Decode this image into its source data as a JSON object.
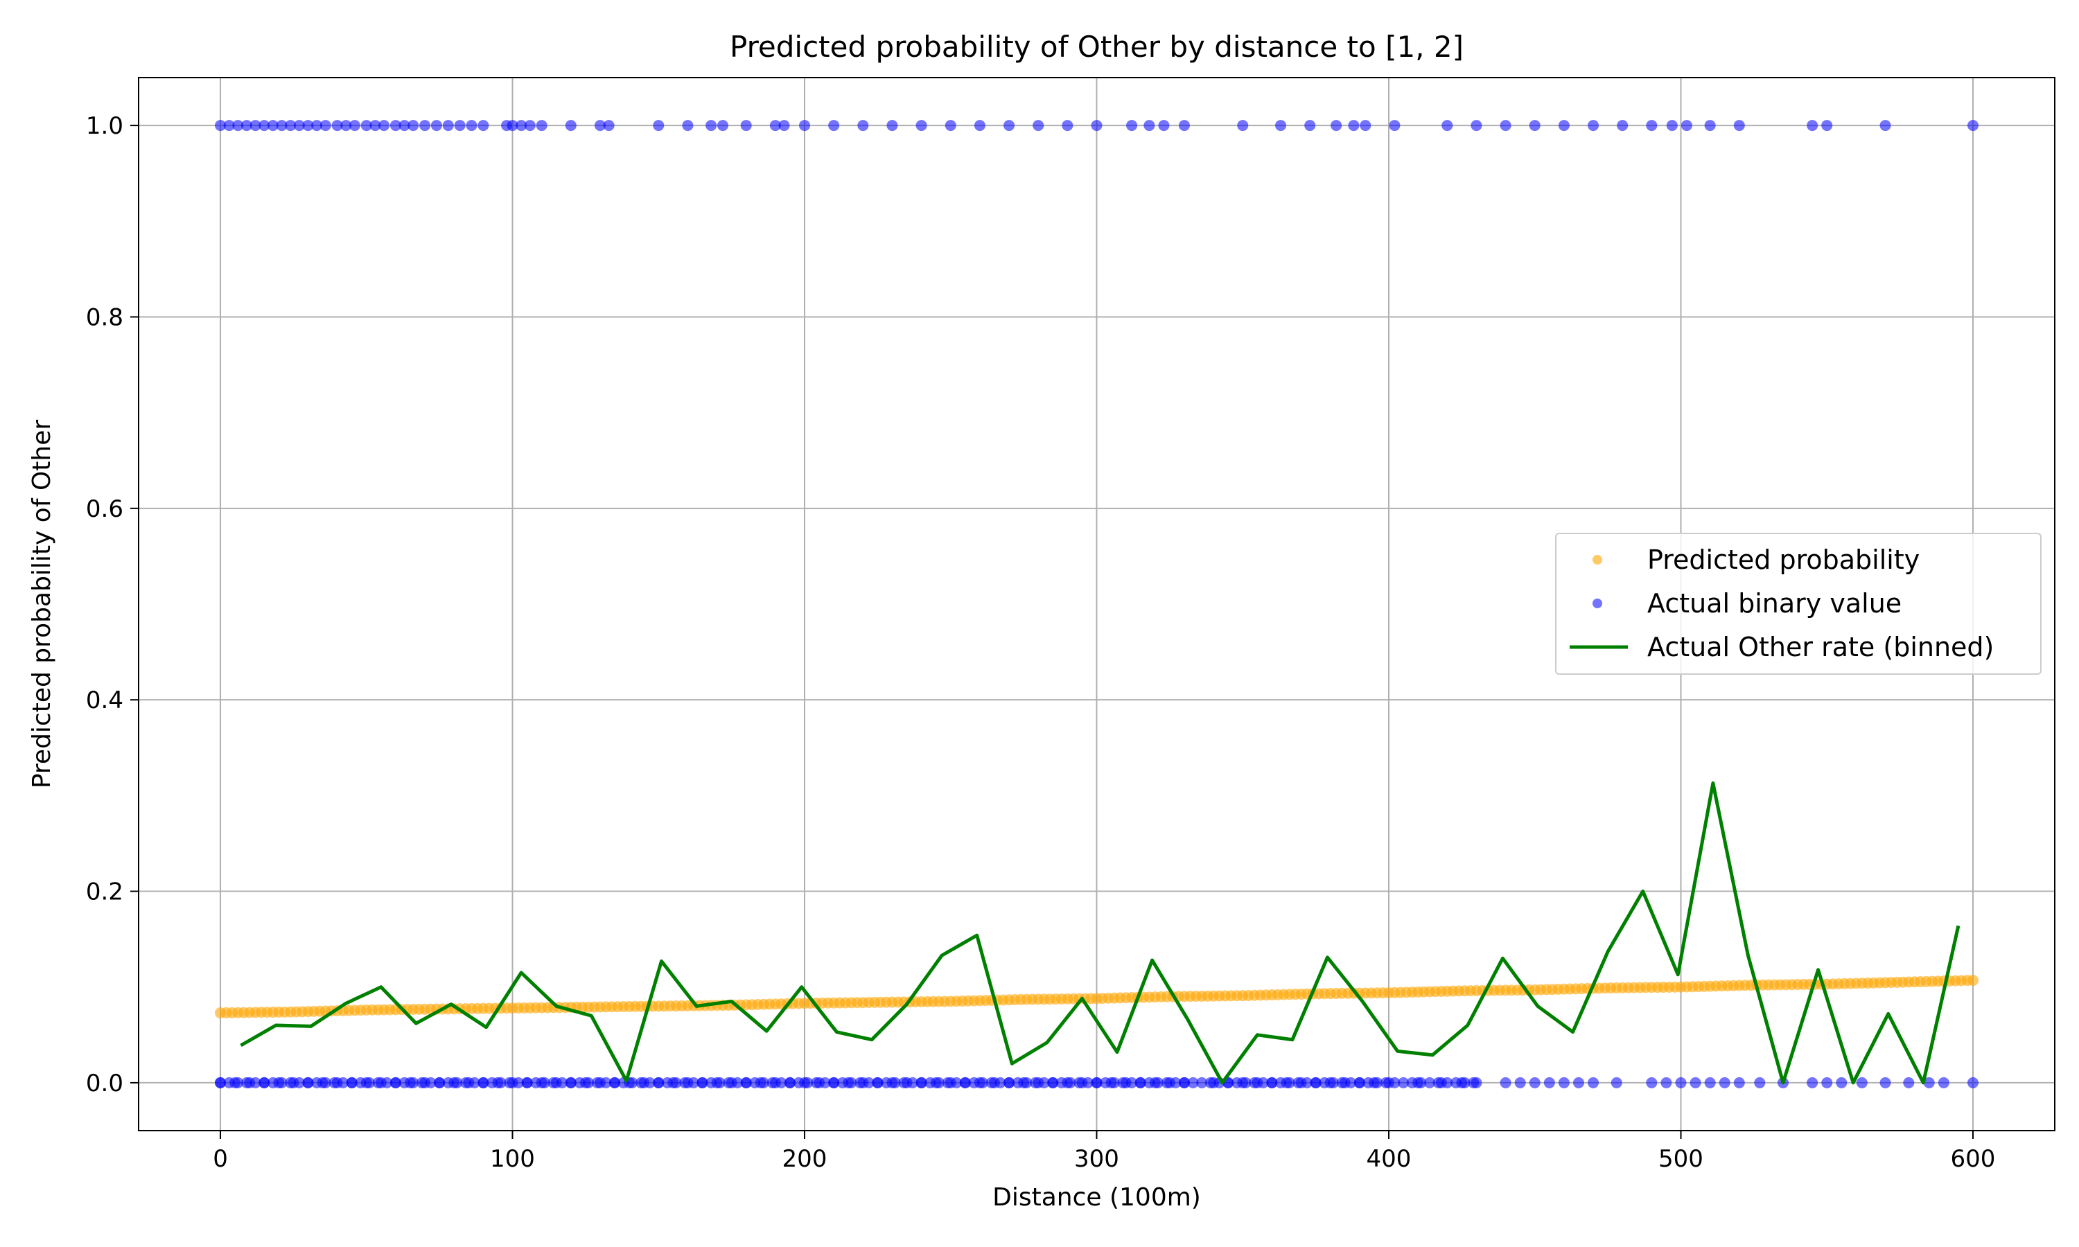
{
  "chart_data": {
    "type": "scatter",
    "title": "Predicted probability of Other by distance to [1, 2]",
    "xlabel": "Distance (100m)",
    "ylabel": "Predicted probability of Other",
    "xlim": [
      -28,
      628
    ],
    "ylim": [
      -0.05,
      1.05
    ],
    "xticks": [
      0,
      100,
      200,
      300,
      400,
      500,
      600
    ],
    "xtick_labels": [
      "0",
      "100",
      "200",
      "300",
      "400",
      "500",
      "600"
    ],
    "yticks": [
      0.0,
      0.2,
      0.4,
      0.6,
      0.8,
      1.0
    ],
    "ytick_labels": [
      "0.0",
      "0.2",
      "0.4",
      "0.6",
      "0.8",
      "1.0"
    ],
    "grid": true,
    "legend_position": "center-right",
    "colors": {
      "predicted": "#ffa500",
      "actual": "#0000ff",
      "binned": "#008000",
      "grid": "#b0b0b0"
    },
    "series": [
      {
        "name": "Predicted probability",
        "kind": "scatter",
        "x": [
          0,
          25,
          50,
          75,
          100,
          125,
          150,
          175,
          200,
          225,
          250,
          275,
          300,
          325,
          350,
          375,
          400,
          425,
          450,
          475,
          500,
          525,
          550,
          575,
          600
        ],
        "y": [
          0.073,
          0.074,
          0.076,
          0.077,
          0.078,
          0.079,
          0.08,
          0.081,
          0.083,
          0.084,
          0.085,
          0.087,
          0.088,
          0.09,
          0.091,
          0.093,
          0.094,
          0.096,
          0.097,
          0.099,
          0.1,
          0.102,
          0.103,
          0.105,
          0.107
        ]
      },
      {
        "name": "Actual binary value",
        "kind": "scatter",
        "points_at_1": [
          0,
          3,
          6,
          9,
          12,
          15,
          18,
          21,
          24,
          27,
          30,
          33,
          36,
          40,
          43,
          46,
          50,
          53,
          56,
          60,
          63,
          66,
          70,
          74,
          78,
          82,
          86,
          90,
          98,
          100,
          103,
          106,
          110,
          120,
          130,
          133,
          150,
          160,
          168,
          172,
          180,
          190,
          193,
          200,
          210,
          220,
          230,
          240,
          250,
          260,
          270,
          280,
          290,
          300,
          312,
          318,
          323,
          330,
          350,
          363,
          373,
          382,
          388,
          392,
          402,
          420,
          430,
          440,
          450,
          460,
          470,
          480,
          490,
          497,
          502,
          510,
          520,
          545,
          550,
          570,
          600
        ],
        "points_at_0": [
          0,
          5,
          10,
          15,
          20,
          25,
          30,
          35,
          40,
          45,
          50,
          55,
          60,
          65,
          70,
          75,
          80,
          85,
          90,
          95,
          100,
          105,
          110,
          115,
          120,
          125,
          130,
          135,
          140,
          145,
          150,
          155,
          160,
          165,
          170,
          175,
          180,
          185,
          190,
          195,
          200,
          205,
          210,
          215,
          220,
          225,
          230,
          235,
          240,
          245,
          250,
          255,
          260,
          265,
          270,
          275,
          280,
          285,
          290,
          295,
          300,
          305,
          310,
          315,
          320,
          325,
          330,
          340,
          345,
          350,
          355,
          360,
          365,
          370,
          375,
          380,
          385,
          390,
          395,
          400,
          410,
          418,
          425,
          430,
          440,
          445,
          450,
          455,
          460,
          465,
          470,
          478,
          490,
          495,
          500,
          505,
          510,
          515,
          520,
          527,
          535,
          545,
          550,
          555,
          562,
          570,
          578,
          585,
          590,
          600
        ]
      },
      {
        "name": "Actual Other rate (binned)",
        "kind": "line",
        "x": [
          7,
          19,
          31,
          43,
          55,
          67,
          79,
          91,
          103,
          115,
          127,
          139,
          151,
          163,
          175,
          187,
          199,
          211,
          223,
          235,
          247,
          259,
          271,
          283,
          295,
          307,
          319,
          331,
          343,
          355,
          367,
          379,
          391,
          403,
          415,
          427,
          439,
          451,
          463,
          475,
          487,
          499,
          511,
          523,
          535,
          547,
          559,
          571,
          583,
          595
        ],
        "y": [
          0.039,
          0.06,
          0.059,
          0.083,
          0.1,
          0.062,
          0.082,
          0.058,
          0.115,
          0.08,
          0.07,
          0.002,
          0.127,
          0.08,
          0.085,
          0.054,
          0.1,
          0.053,
          0.045,
          0.082,
          0.133,
          0.154,
          0.02,
          0.042,
          0.088,
          0.032,
          0.128,
          0.067,
          0.0,
          0.05,
          0.045,
          0.131,
          0.085,
          0.033,
          0.029,
          0.06,
          0.13,
          0.08,
          0.053,
          0.137,
          0.2,
          0.113,
          0.313,
          0.133,
          0.0,
          0.118,
          0.0,
          0.072,
          0.0,
          0.164
        ]
      }
    ]
  }
}
